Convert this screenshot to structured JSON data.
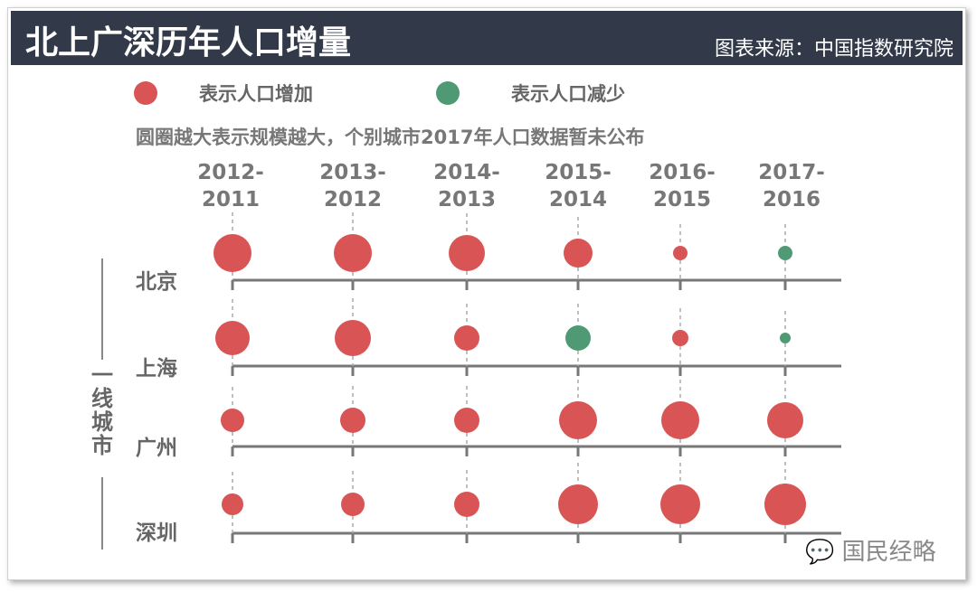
{
  "header": {
    "title": "北上广深历年人口增量",
    "source": "图表来源：中国指数研究院"
  },
  "legend": {
    "increase": "表示人口增加",
    "decrease": "表示人口减少"
  },
  "note": "圆圈越大表示规模越大，个别城市2017年人口数据暂未公布",
  "group_label": "一线城市",
  "watermark": "国民经略",
  "colors": {
    "increase": "#d95555",
    "decrease": "#4f9a75",
    "axis": "#777777"
  },
  "chart_data": {
    "type": "bubble",
    "title": "北上广深历年人口增量",
    "categories": [
      [
        "2012-",
        "2011"
      ],
      [
        "2013-",
        "2012"
      ],
      [
        "2014-",
        "2013"
      ],
      [
        "2015-",
        "2014"
      ],
      [
        "2016-",
        "2015"
      ],
      [
        "2017-",
        "2016"
      ]
    ],
    "series": [
      {
        "name": "北京",
        "sizes": [
          21,
          21,
          20,
          16,
          8,
          8
        ],
        "direction": [
          "increase",
          "increase",
          "increase",
          "increase",
          "increase",
          "decrease"
        ]
      },
      {
        "name": "上海",
        "sizes": [
          19,
          20,
          14,
          14,
          9,
          6
        ],
        "direction": [
          "increase",
          "increase",
          "increase",
          "decrease",
          "increase",
          "decrease"
        ]
      },
      {
        "name": "广州",
        "sizes": [
          13,
          14,
          14,
          21,
          21,
          20
        ],
        "direction": [
          "increase",
          "increase",
          "increase",
          "increase",
          "increase",
          "increase"
        ]
      },
      {
        "name": "深圳",
        "sizes": [
          12,
          13,
          14,
          22,
          22,
          23
        ],
        "direction": [
          "increase",
          "increase",
          "increase",
          "increase",
          "increase",
          "increase"
        ]
      }
    ],
    "legend": "top"
  }
}
